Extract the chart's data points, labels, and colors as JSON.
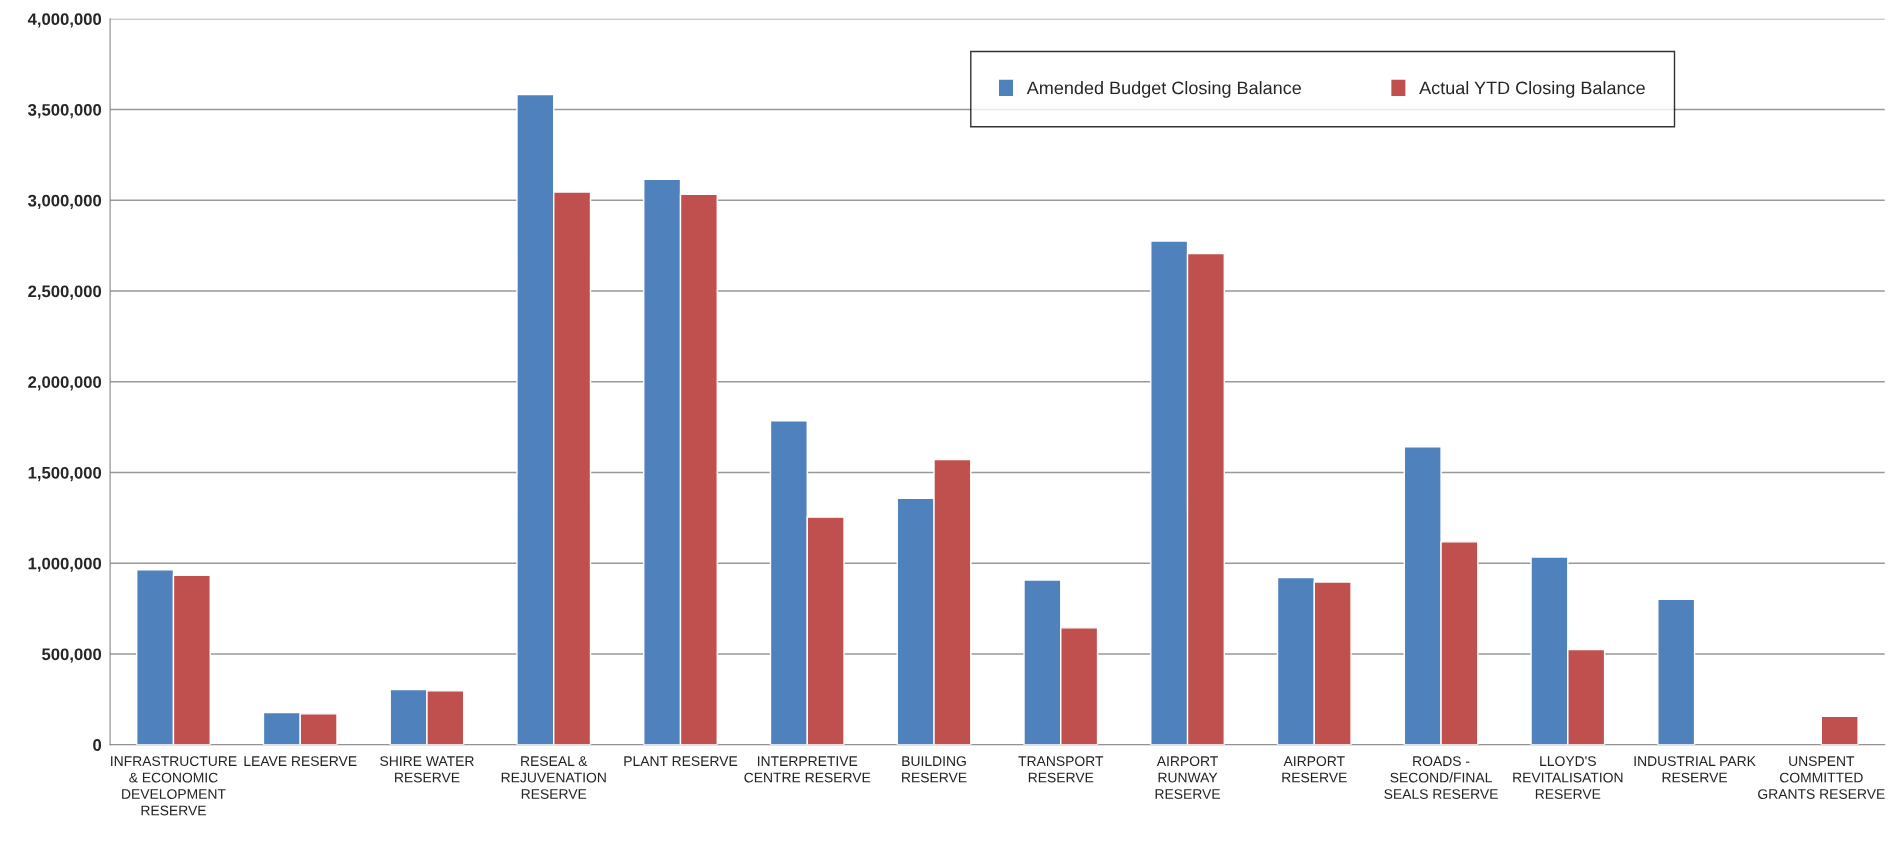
{
  "chart_data": {
    "type": "bar",
    "categories": [
      "INFRASTRUCTURE\n& ECONOMIC\nDEVELOPMENT\nRESERVE",
      "LEAVE RESERVE",
      "SHIRE WATER\nRESERVE",
      "RESEAL &\nREJUVENATION\nRESERVE",
      "PLANT RESERVE",
      "INTERPRETIVE\nCENTRE RESERVE",
      "BUILDING\nRESERVE",
      "TRANSPORT\nRESERVE",
      "AIRPORT\nRUNWAY\nRESERVE",
      "AIRPORT\nRESERVE",
      "ROADS -\nSECOND/FINAL\nSEALS RESERVE",
      "LLOYD'S\nREVITALISATION\nRESERVE",
      "INDUSTRIAL PARK\nRESERVE",
      "UNSPENT\nCOMMITTED\nGRANTS RESERVE"
    ],
    "series": [
      {
        "name": "Amended Budget Closing Balance",
        "color": "#4f81bd",
        "values": [
          964000,
          177000,
          304000,
          3583000,
          3116000,
          1785000,
          1358000,
          907000,
          2776000,
          921000,
          1641000,
          1034000,
          801000,
          null
        ]
      },
      {
        "name": "Actual YTD Closing Balance",
        "color": "#c0504d",
        "values": [
          934000,
          170000,
          297000,
          3046000,
          3033000,
          1254000,
          1571000,
          644000,
          2706000,
          897000,
          1118000,
          524000,
          null,
          157000
        ]
      }
    ],
    "ylim": [
      0,
      4000000
    ],
    "yticks": [
      {
        "value": 0,
        "label": "0"
      },
      {
        "value": 500000,
        "label": "500,000"
      },
      {
        "value": 1000000,
        "label": "1,000,000"
      },
      {
        "value": 1500000,
        "label": "1,500,000"
      },
      {
        "value": 2000000,
        "label": "2,000,000"
      },
      {
        "value": 2500000,
        "label": "2,500,000"
      },
      {
        "value": 3000000,
        "label": "3,000,000"
      },
      {
        "value": 3500000,
        "label": "3,500,000"
      },
      {
        "value": 4000000,
        "label": "4,000,000"
      }
    ],
    "grid": "y",
    "legend": "top right"
  }
}
